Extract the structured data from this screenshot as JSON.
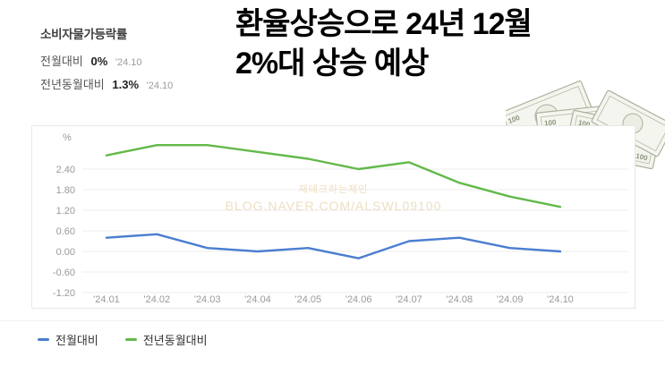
{
  "header": {
    "stat_title": "소비자물가등락률",
    "rows": [
      {
        "label": "전월대비",
        "value": "0%",
        "date": "'24.10"
      },
      {
        "label": "전년동월대비",
        "value": "1.3%",
        "date": "'24.10"
      }
    ],
    "headline_line1": "환율상승으로 24년 12월",
    "headline_line2": "2%대 상승 예상"
  },
  "watermark": {
    "line1": "재테크하는제인",
    "line2": "BLOG.NAVER.COM/ALSWL09100"
  },
  "chart_data": {
    "type": "line",
    "title": "",
    "ylabel": "%",
    "categories": [
      "'24.01",
      "'24.02",
      "'24.03",
      "'24.04",
      "'24.05",
      "'24.06",
      "'24.07",
      "'24.08",
      "'24.09",
      "'24.10"
    ],
    "series": [
      {
        "name": "전월대비",
        "color": "#4a7ed0",
        "values": [
          0.4,
          0.5,
          0.1,
          0.0,
          0.1,
          -0.2,
          0.3,
          0.4,
          0.1,
          0.0
        ]
      },
      {
        "name": "전년동월대비",
        "color": "#63b94a",
        "values": [
          2.8,
          3.1,
          3.1,
          2.9,
          2.7,
          2.4,
          2.6,
          2.0,
          1.6,
          1.3
        ]
      }
    ],
    "yticks": [
      "2.40",
      "1.80",
      "1.20",
      "0.60",
      "0.00",
      "-0.60",
      "-1.20"
    ],
    "ylim": [
      -1.5,
      3.55
    ],
    "grid": true,
    "legend_position": "bottom"
  },
  "legend": {
    "items": [
      {
        "label": "전월대비",
        "color": "#4a7ed0"
      },
      {
        "label": "전년동월대비",
        "color": "#63b94a"
      }
    ]
  },
  "colors": {
    "grid": "#ececec",
    "axis_text": "#9a9a9a",
    "bill_paper": "#f5f5f0",
    "bill_ink": "#a0ab92"
  }
}
